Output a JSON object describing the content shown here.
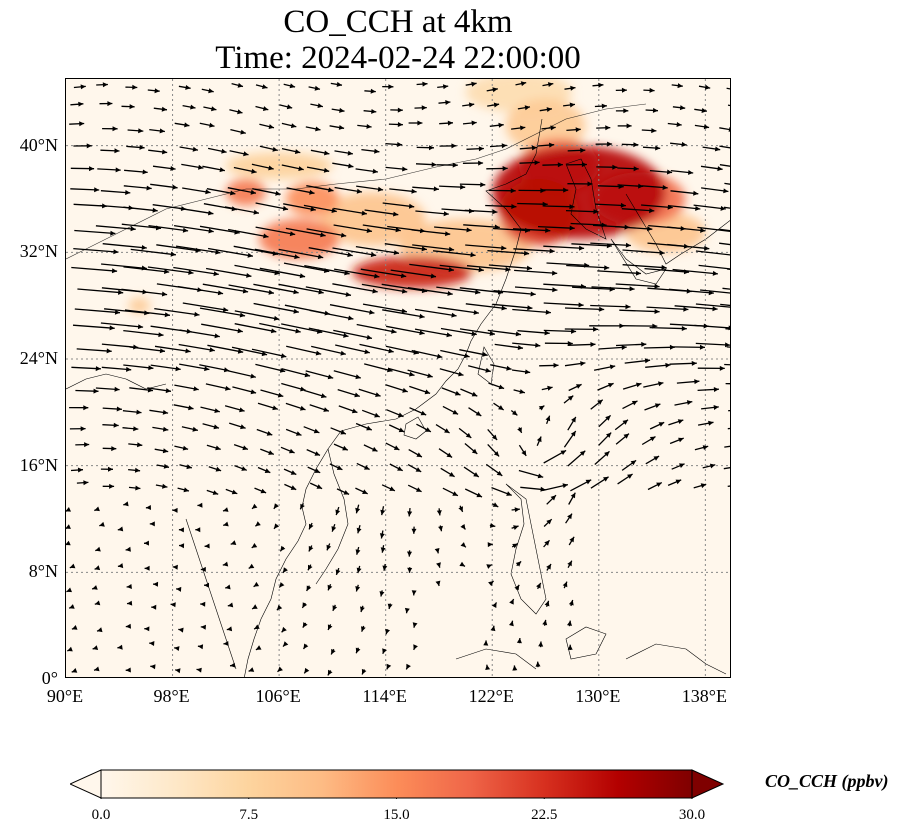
{
  "title": {
    "line1": "CO_CCH at 4km",
    "line2": "Time: 2024-02-24 22:00:00"
  },
  "map": {
    "lon_range": [
      90,
      140
    ],
    "lat_range": [
      0,
      45
    ],
    "gridlines": true,
    "coastlines": true,
    "wind_vectors": true,
    "colormap": "OrRd",
    "lat_ticks": [
      {
        "value": 40,
        "label": "40°N"
      },
      {
        "value": 32,
        "label": "32°N"
      },
      {
        "value": 24,
        "label": "24°N"
      },
      {
        "value": 16,
        "label": "16°N"
      },
      {
        "value": 8,
        "label": "8°N"
      },
      {
        "value": 0,
        "label": "0°"
      }
    ],
    "lon_ticks": [
      {
        "value": 90,
        "label": "90°E"
      },
      {
        "value": 98,
        "label": "98°E"
      },
      {
        "value": 106,
        "label": "106°E"
      },
      {
        "value": 114,
        "label": "114°E"
      },
      {
        "value": 122,
        "label": "122°E"
      },
      {
        "value": 130,
        "label": "130°E"
      },
      {
        "value": 138,
        "label": "138°E"
      }
    ],
    "concentration_features": [
      {
        "lon": 128.5,
        "lat": 36.5,
        "rx": 6.5,
        "ry": 3.5,
        "value": 26
      },
      {
        "lon": 125.5,
        "lat": 35,
        "rx": 3,
        "ry": 2.5,
        "value": 22
      },
      {
        "lon": 127,
        "lat": 38.5,
        "rx": 3,
        "ry": 2,
        "value": 18
      },
      {
        "lon": 133,
        "lat": 36,
        "rx": 3.5,
        "ry": 2,
        "value": 18
      },
      {
        "lon": 116,
        "lat": 30.5,
        "rx": 4.5,
        "ry": 1.2,
        "value": 24
      },
      {
        "lon": 107.5,
        "lat": 33,
        "rx": 3,
        "ry": 1.5,
        "value": 17
      },
      {
        "lon": 103.5,
        "lat": 36.5,
        "rx": 1.5,
        "ry": 1,
        "value": 17
      },
      {
        "lon": 108.5,
        "lat": 36,
        "rx": 2,
        "ry": 1.3,
        "value": 15
      },
      {
        "lon": 120,
        "lat": 32.5,
        "rx": 5,
        "ry": 2,
        "value": 10
      },
      {
        "lon": 113,
        "lat": 34.5,
        "rx": 4,
        "ry": 2,
        "value": 10
      },
      {
        "lon": 106,
        "lat": 38.5,
        "rx": 4,
        "ry": 1,
        "value": 8
      },
      {
        "lon": 126,
        "lat": 41.5,
        "rx": 3,
        "ry": 2,
        "value": 9
      },
      {
        "lon": 135,
        "lat": 33.5,
        "rx": 3,
        "ry": 1.5,
        "value": 10
      },
      {
        "lon": 95.5,
        "lat": 28,
        "rx": 0.8,
        "ry": 0.6,
        "value": 9
      },
      {
        "lon": 124,
        "lat": 44,
        "rx": 4,
        "ry": 1.5,
        "value": 6
      }
    ]
  },
  "colorbar": {
    "min": 0.0,
    "max": 30.0,
    "extend": "both",
    "tick_values": [
      0,
      7.5,
      15,
      22.5,
      30
    ],
    "tick_labels": [
      "0.0",
      "7.5",
      "15.0",
      "22.5",
      "30.0"
    ],
    "label": "CO_CCH (ppbv)",
    "colors": [
      "#fff7ec",
      "#fee8c8",
      "#fdd49e",
      "#fdbb84",
      "#fc8d59",
      "#ef6548",
      "#d7301f",
      "#b30000",
      "#7f0000"
    ]
  }
}
